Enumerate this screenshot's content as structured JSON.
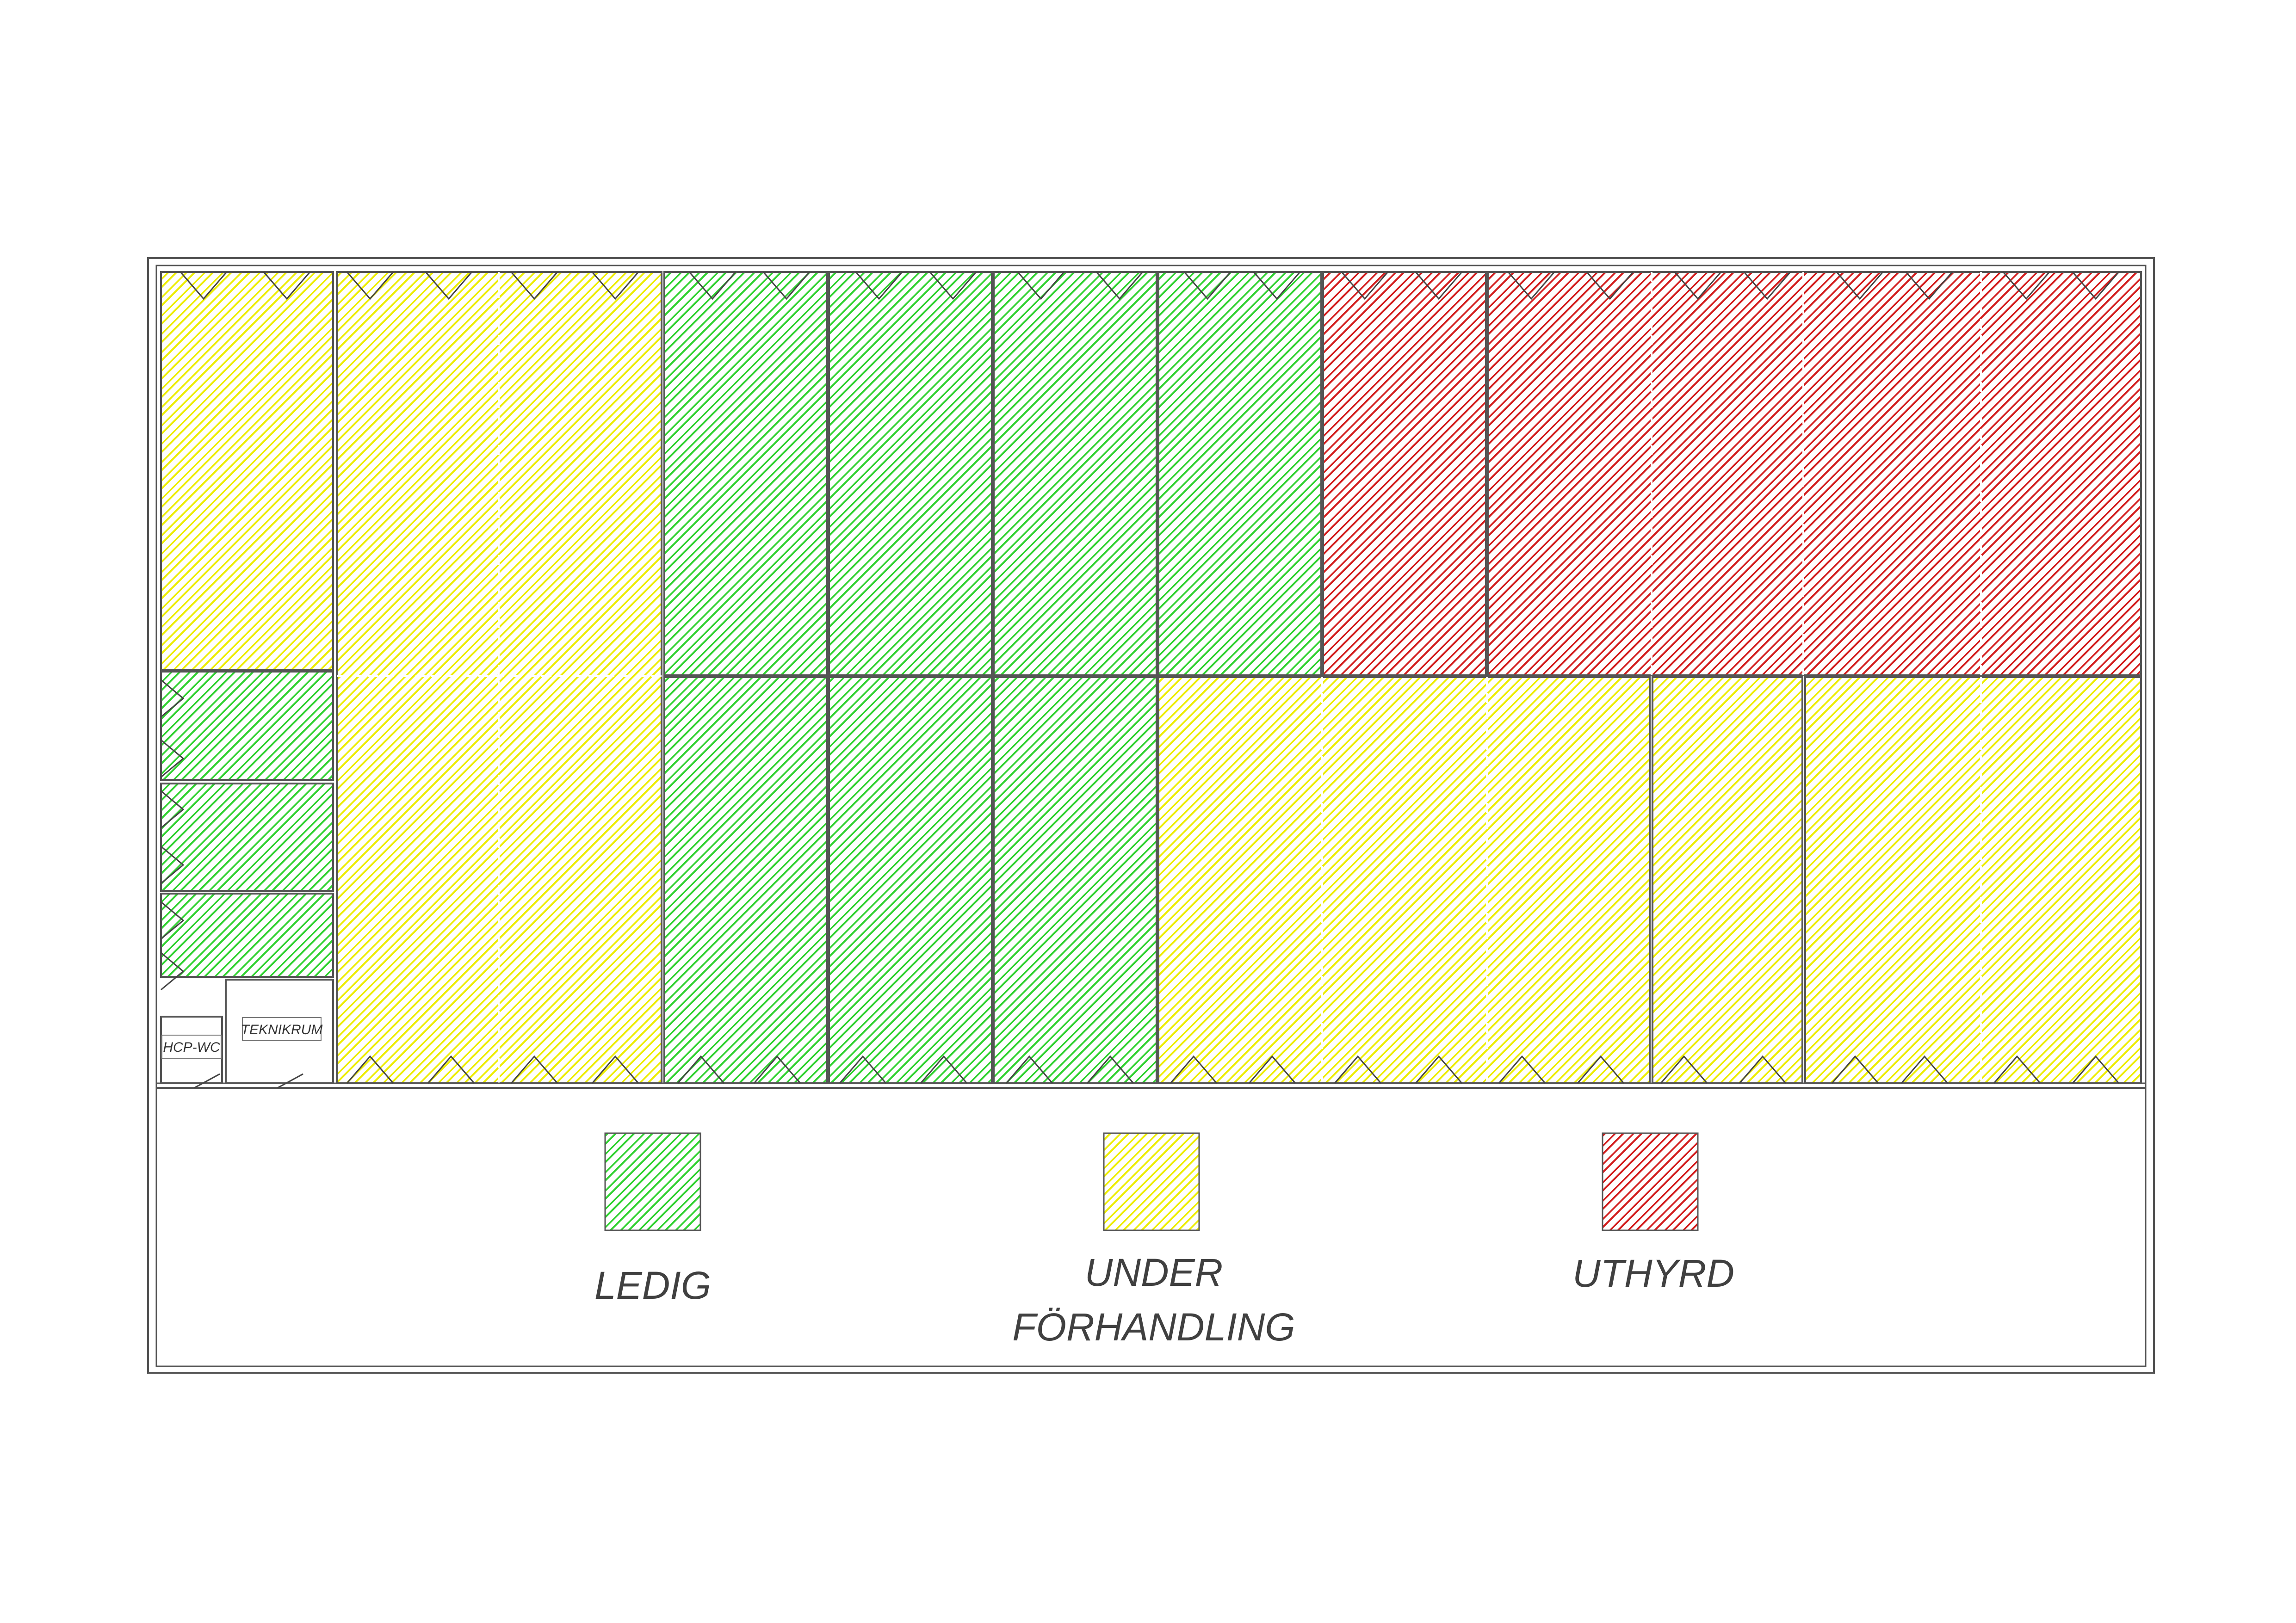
{
  "legend": {
    "available": {
      "label": "LEDIG",
      "color": "#22cc22"
    },
    "negotiation": {
      "label_line1": "UNDER",
      "label_line2": "FÖRHANDLING",
      "color": "#e8e800"
    },
    "rented": {
      "label": "UTHYRD",
      "color": "#cc1111"
    }
  },
  "rooms": {
    "teknikrum": "TEKNIKRUM",
    "hcp_wc": "HCP-WC"
  },
  "colors": {
    "wall": "#555555",
    "background": "#ffffff"
  }
}
